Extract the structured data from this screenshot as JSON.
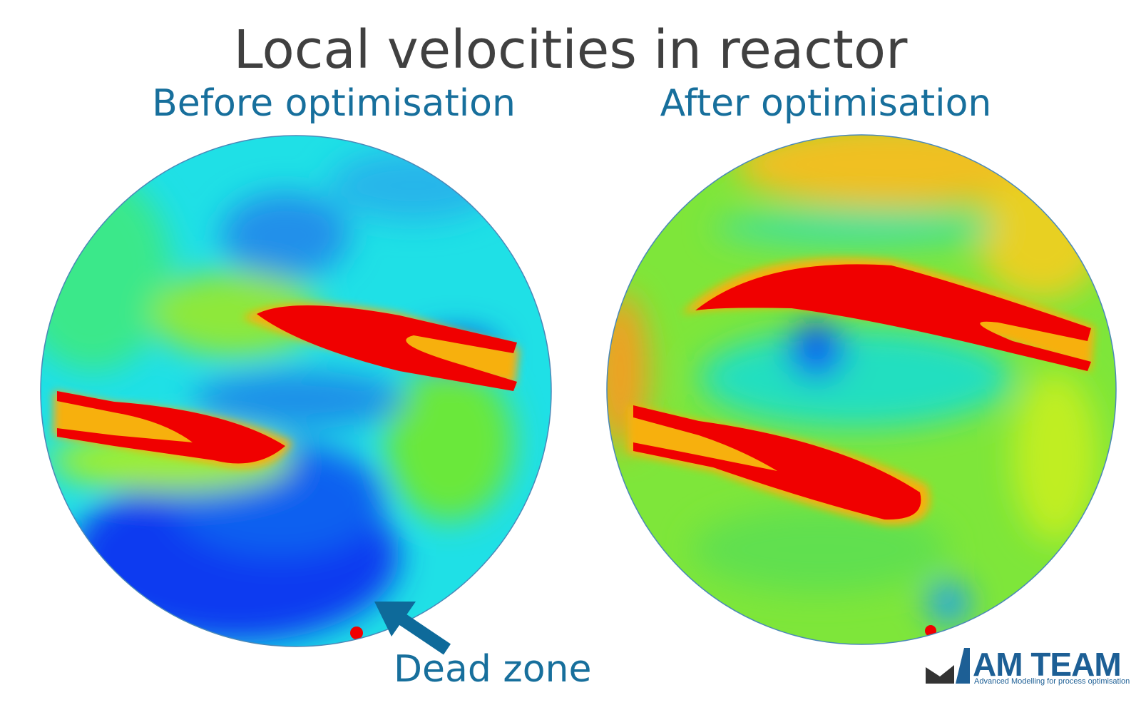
{
  "title": "Local velocities in reactor",
  "panels": [
    {
      "label": "Before optimisation"
    },
    {
      "label": "After optimisation"
    }
  ],
  "annotation": "Dead zone",
  "logo": {
    "name": "AM TEAM",
    "tagline": "Advanced Modelling for process optimisation"
  }
}
